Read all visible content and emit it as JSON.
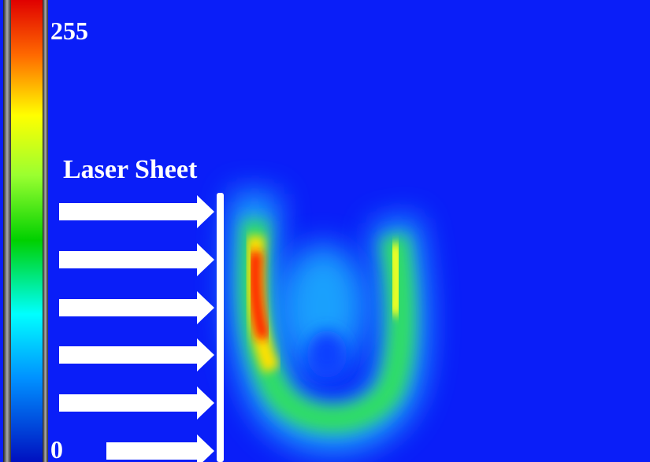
{
  "colorbar": {
    "max": 255,
    "min": 0
  },
  "annotation": "Laser Sheet"
}
